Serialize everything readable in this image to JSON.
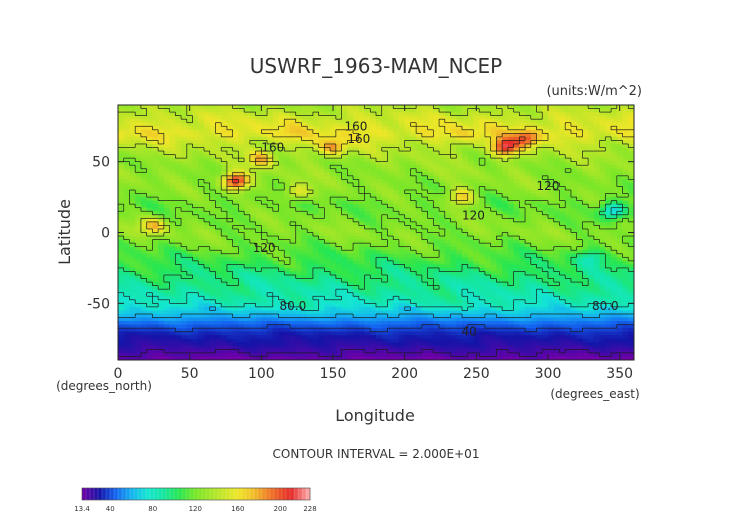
{
  "chart_data": {
    "type": "heatmap",
    "title": "USWRF_1963-MAM_NCEP",
    "units": "(units:W/m^2)",
    "xlabel": "Longitude",
    "ylabel": "Latitude",
    "x_unit_label": "(degrees_east)",
    "y_unit_label": "(degrees_north)",
    "xlim": [
      0,
      360
    ],
    "ylim": [
      -90,
      90
    ],
    "x_ticks": [
      "0",
      "50",
      "100",
      "150",
      "200",
      "250",
      "300",
      "350"
    ],
    "y_ticks": [
      "50",
      "0",
      "-50"
    ],
    "contour_interval": "CONTOUR INTERVAL = 2.000E+01",
    "contour_labels": [
      {
        "text": "160",
        "x": 166,
        "y": 75
      },
      {
        "text": "160",
        "x": 168,
        "y": 66
      },
      {
        "text": "160",
        "x": 108,
        "y": 60
      },
      {
        "text": "120",
        "x": 300,
        "y": 33
      },
      {
        "text": "120",
        "x": 248,
        "y": 12
      },
      {
        "text": "120",
        "x": 102,
        "y": -11
      },
      {
        "text": "80.0",
        "x": 122,
        "y": -52
      },
      {
        "text": "80.0",
        "x": 340,
        "y": -52
      },
      {
        "text": "40",
        "x": 245,
        "y": -70
      }
    ],
    "colorbar": {
      "min_label": "13.4",
      "max_label": "228",
      "min": 13.4,
      "max": 228,
      "ticks": [
        "40",
        "80",
        "120",
        "160",
        "200"
      ],
      "tick_values": [
        40,
        80,
        120,
        160,
        200
      ]
    },
    "zonal_profile": [
      {
        "lat": 90,
        "value": 135
      },
      {
        "lat": 80,
        "value": 150
      },
      {
        "lat": 70,
        "value": 160
      },
      {
        "lat": 60,
        "value": 140
      },
      {
        "lat": 50,
        "value": 130
      },
      {
        "lat": 40,
        "value": 128
      },
      {
        "lat": 30,
        "value": 124
      },
      {
        "lat": 20,
        "value": 118
      },
      {
        "lat": 10,
        "value": 122
      },
      {
        "lat": 0,
        "value": 126
      },
      {
        "lat": -10,
        "value": 118
      },
      {
        "lat": -20,
        "value": 108
      },
      {
        "lat": -30,
        "value": 98
      },
      {
        "lat": -40,
        "value": 90
      },
      {
        "lat": -50,
        "value": 82
      },
      {
        "lat": -58,
        "value": 62
      },
      {
        "lat": -65,
        "value": 44
      },
      {
        "lat": -72,
        "value": 32
      },
      {
        "lat": -80,
        "value": 26
      },
      {
        "lat": -90,
        "value": 14
      }
    ],
    "hotspots": [
      {
        "lon": 82,
        "lat": 36,
        "value": 215
      },
      {
        "lon": 270,
        "lat": 60,
        "value": 210
      },
      {
        "lon": 285,
        "lat": 66,
        "value": 200
      },
      {
        "lon": 150,
        "lat": 60,
        "value": 185
      },
      {
        "lon": 100,
        "lat": 52,
        "value": 180
      },
      {
        "lon": 25,
        "lat": 5,
        "value": 175
      },
      {
        "lon": 240,
        "lat": 25,
        "value": 170
      },
      {
        "lon": 240,
        "lat": 68,
        "value": 165
      },
      {
        "lon": 120,
        "lat": 70,
        "value": 165
      },
      {
        "lon": 125,
        "lat": 28,
        "value": 160
      },
      {
        "lon": 345,
        "lat": 15,
        "value": 60
      },
      {
        "lon": 330,
        "lat": -18,
        "value": 85
      }
    ],
    "colormap": [
      {
        "value": 13.4,
        "color": "#7000a8"
      },
      {
        "value": 30,
        "color": "#1414a8"
      },
      {
        "value": 45,
        "color": "#1464f0"
      },
      {
        "value": 60,
        "color": "#14b4f0"
      },
      {
        "value": 75,
        "color": "#14e6d2"
      },
      {
        "value": 90,
        "color": "#14e6a0"
      },
      {
        "value": 105,
        "color": "#28e650"
      },
      {
        "value": 120,
        "color": "#78e628"
      },
      {
        "value": 140,
        "color": "#b4e628"
      },
      {
        "value": 160,
        "color": "#f0e628"
      },
      {
        "value": 175,
        "color": "#f0be28"
      },
      {
        "value": 190,
        "color": "#f07828"
      },
      {
        "value": 210,
        "color": "#e62828"
      },
      {
        "value": 228,
        "color": "#ffb4b4"
      }
    ]
  }
}
